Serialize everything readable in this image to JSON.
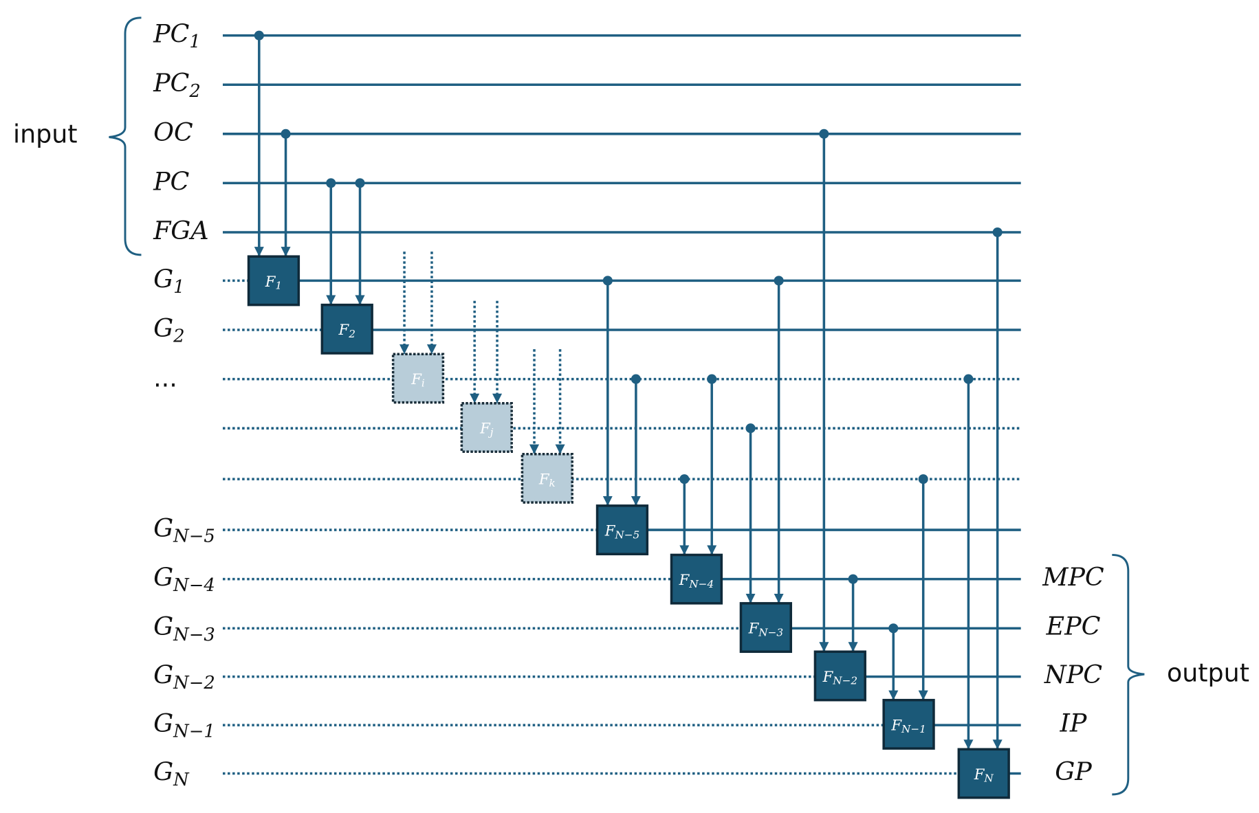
{
  "input_label": "input",
  "output_label": "output",
  "left_labels": [
    {
      "base": "PC",
      "sub": "1"
    },
    {
      "base": "PC",
      "sub": "2"
    },
    {
      "base": "OC"
    },
    {
      "base": "PC"
    },
    {
      "base": "FGA"
    },
    {
      "base": "G",
      "sub": "1"
    },
    {
      "base": "G",
      "sub": "2"
    },
    {
      "base": "..."
    },
    {
      "base": "G",
      "sub": "N−5"
    },
    {
      "base": "G",
      "sub": "N−4"
    },
    {
      "base": "G",
      "sub": "N−3"
    },
    {
      "base": "G",
      "sub": "N−2"
    },
    {
      "base": "G",
      "sub": "N−1"
    },
    {
      "base": "G",
      "sub": "N"
    }
  ],
  "outputs": [
    "MPC",
    "EPC",
    "NPC",
    "IP",
    "GP"
  ],
  "blocks": [
    {
      "base": "F",
      "sub": "1"
    },
    {
      "base": "F",
      "sub": "2"
    },
    {
      "base": "F",
      "sub": "i"
    },
    {
      "base": "F",
      "sub": "j"
    },
    {
      "base": "F",
      "sub": "k"
    },
    {
      "base": "F",
      "sub": "N−5"
    },
    {
      "base": "F",
      "sub": "N−4"
    },
    {
      "base": "F",
      "sub": "N−3"
    },
    {
      "base": "F",
      "sub": "N−2"
    },
    {
      "base": "F",
      "sub": "N−1"
    },
    {
      "base": "F",
      "sub": "N"
    }
  ]
}
